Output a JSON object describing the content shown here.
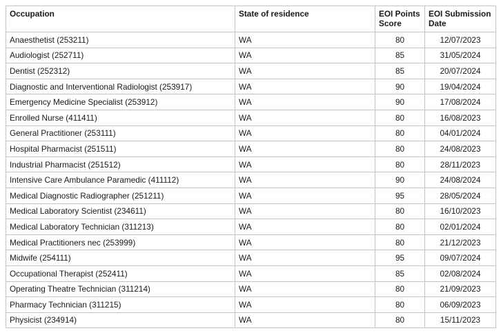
{
  "table": {
    "columns": [
      {
        "key": "occupation",
        "label": "Occupation",
        "align": "left"
      },
      {
        "key": "state",
        "label": "State of residence",
        "align": "left"
      },
      {
        "key": "points",
        "label": "EOI Points Score",
        "align": "center"
      },
      {
        "key": "date",
        "label": "EOI Submission Date",
        "align": "center"
      }
    ],
    "rows": [
      {
        "occupation": "Anaesthetist (253211)",
        "state": "WA",
        "points": "80",
        "date": "12/07/2023"
      },
      {
        "occupation": "Audiologist (252711)",
        "state": "WA",
        "points": "85",
        "date": "31/05/2024"
      },
      {
        "occupation": "Dentist (252312)",
        "state": "WA",
        "points": "85",
        "date": "20/07/2024"
      },
      {
        "occupation": "Diagnostic and Interventional Radiologist (253917)",
        "state": "WA",
        "points": "90",
        "date": "19/04/2024"
      },
      {
        "occupation": "Emergency Medicine Specialist (253912)",
        "state": "WA",
        "points": "90",
        "date": "17/08/2024"
      },
      {
        "occupation": "Enrolled Nurse (411411)",
        "state": "WA",
        "points": "80",
        "date": "16/08/2023"
      },
      {
        "occupation": "General Practitioner (253111)",
        "state": "WA",
        "points": "80",
        "date": "04/01/2024"
      },
      {
        "occupation": "Hospital Pharmacist (251511)",
        "state": "WA",
        "points": "80",
        "date": "24/08/2023"
      },
      {
        "occupation": "Industrial Pharmacist (251512)",
        "state": "WA",
        "points": "80",
        "date": "28/11/2023"
      },
      {
        "occupation": "Intensive Care Ambulance Paramedic (411112)",
        "state": "WA",
        "points": "90",
        "date": "24/08/2024"
      },
      {
        "occupation": "Medical Diagnostic Radiographer (251211)",
        "state": "WA",
        "points": "95",
        "date": "28/05/2024"
      },
      {
        "occupation": "Medical Laboratory Scientist (234611)",
        "state": "WA",
        "points": "80",
        "date": "16/10/2023"
      },
      {
        "occupation": "Medical Laboratory Technician (311213)",
        "state": "WA",
        "points": "80",
        "date": "02/01/2024"
      },
      {
        "occupation": "Medical Practitioners nec (253999)",
        "state": "WA",
        "points": "80",
        "date": "21/12/2023"
      },
      {
        "occupation": "Midwife (254111)",
        "state": "WA",
        "points": "95",
        "date": "09/07/2024"
      },
      {
        "occupation": "Occupational Therapist (252411)",
        "state": "WA",
        "points": "85",
        "date": "02/08/2024"
      },
      {
        "occupation": "Operating Theatre Technician (311214)",
        "state": "WA",
        "points": "80",
        "date": "21/09/2023"
      },
      {
        "occupation": "Pharmacy Technician (311215)",
        "state": "WA",
        "points": "80",
        "date": "06/09/2023"
      },
      {
        "occupation": "Physicist (234914)",
        "state": "WA",
        "points": "80",
        "date": "15/11/2023"
      }
    ]
  },
  "colors": {
    "border": "#c3c3c3",
    "text": "#1a1a1a",
    "background": "#ffffff"
  }
}
